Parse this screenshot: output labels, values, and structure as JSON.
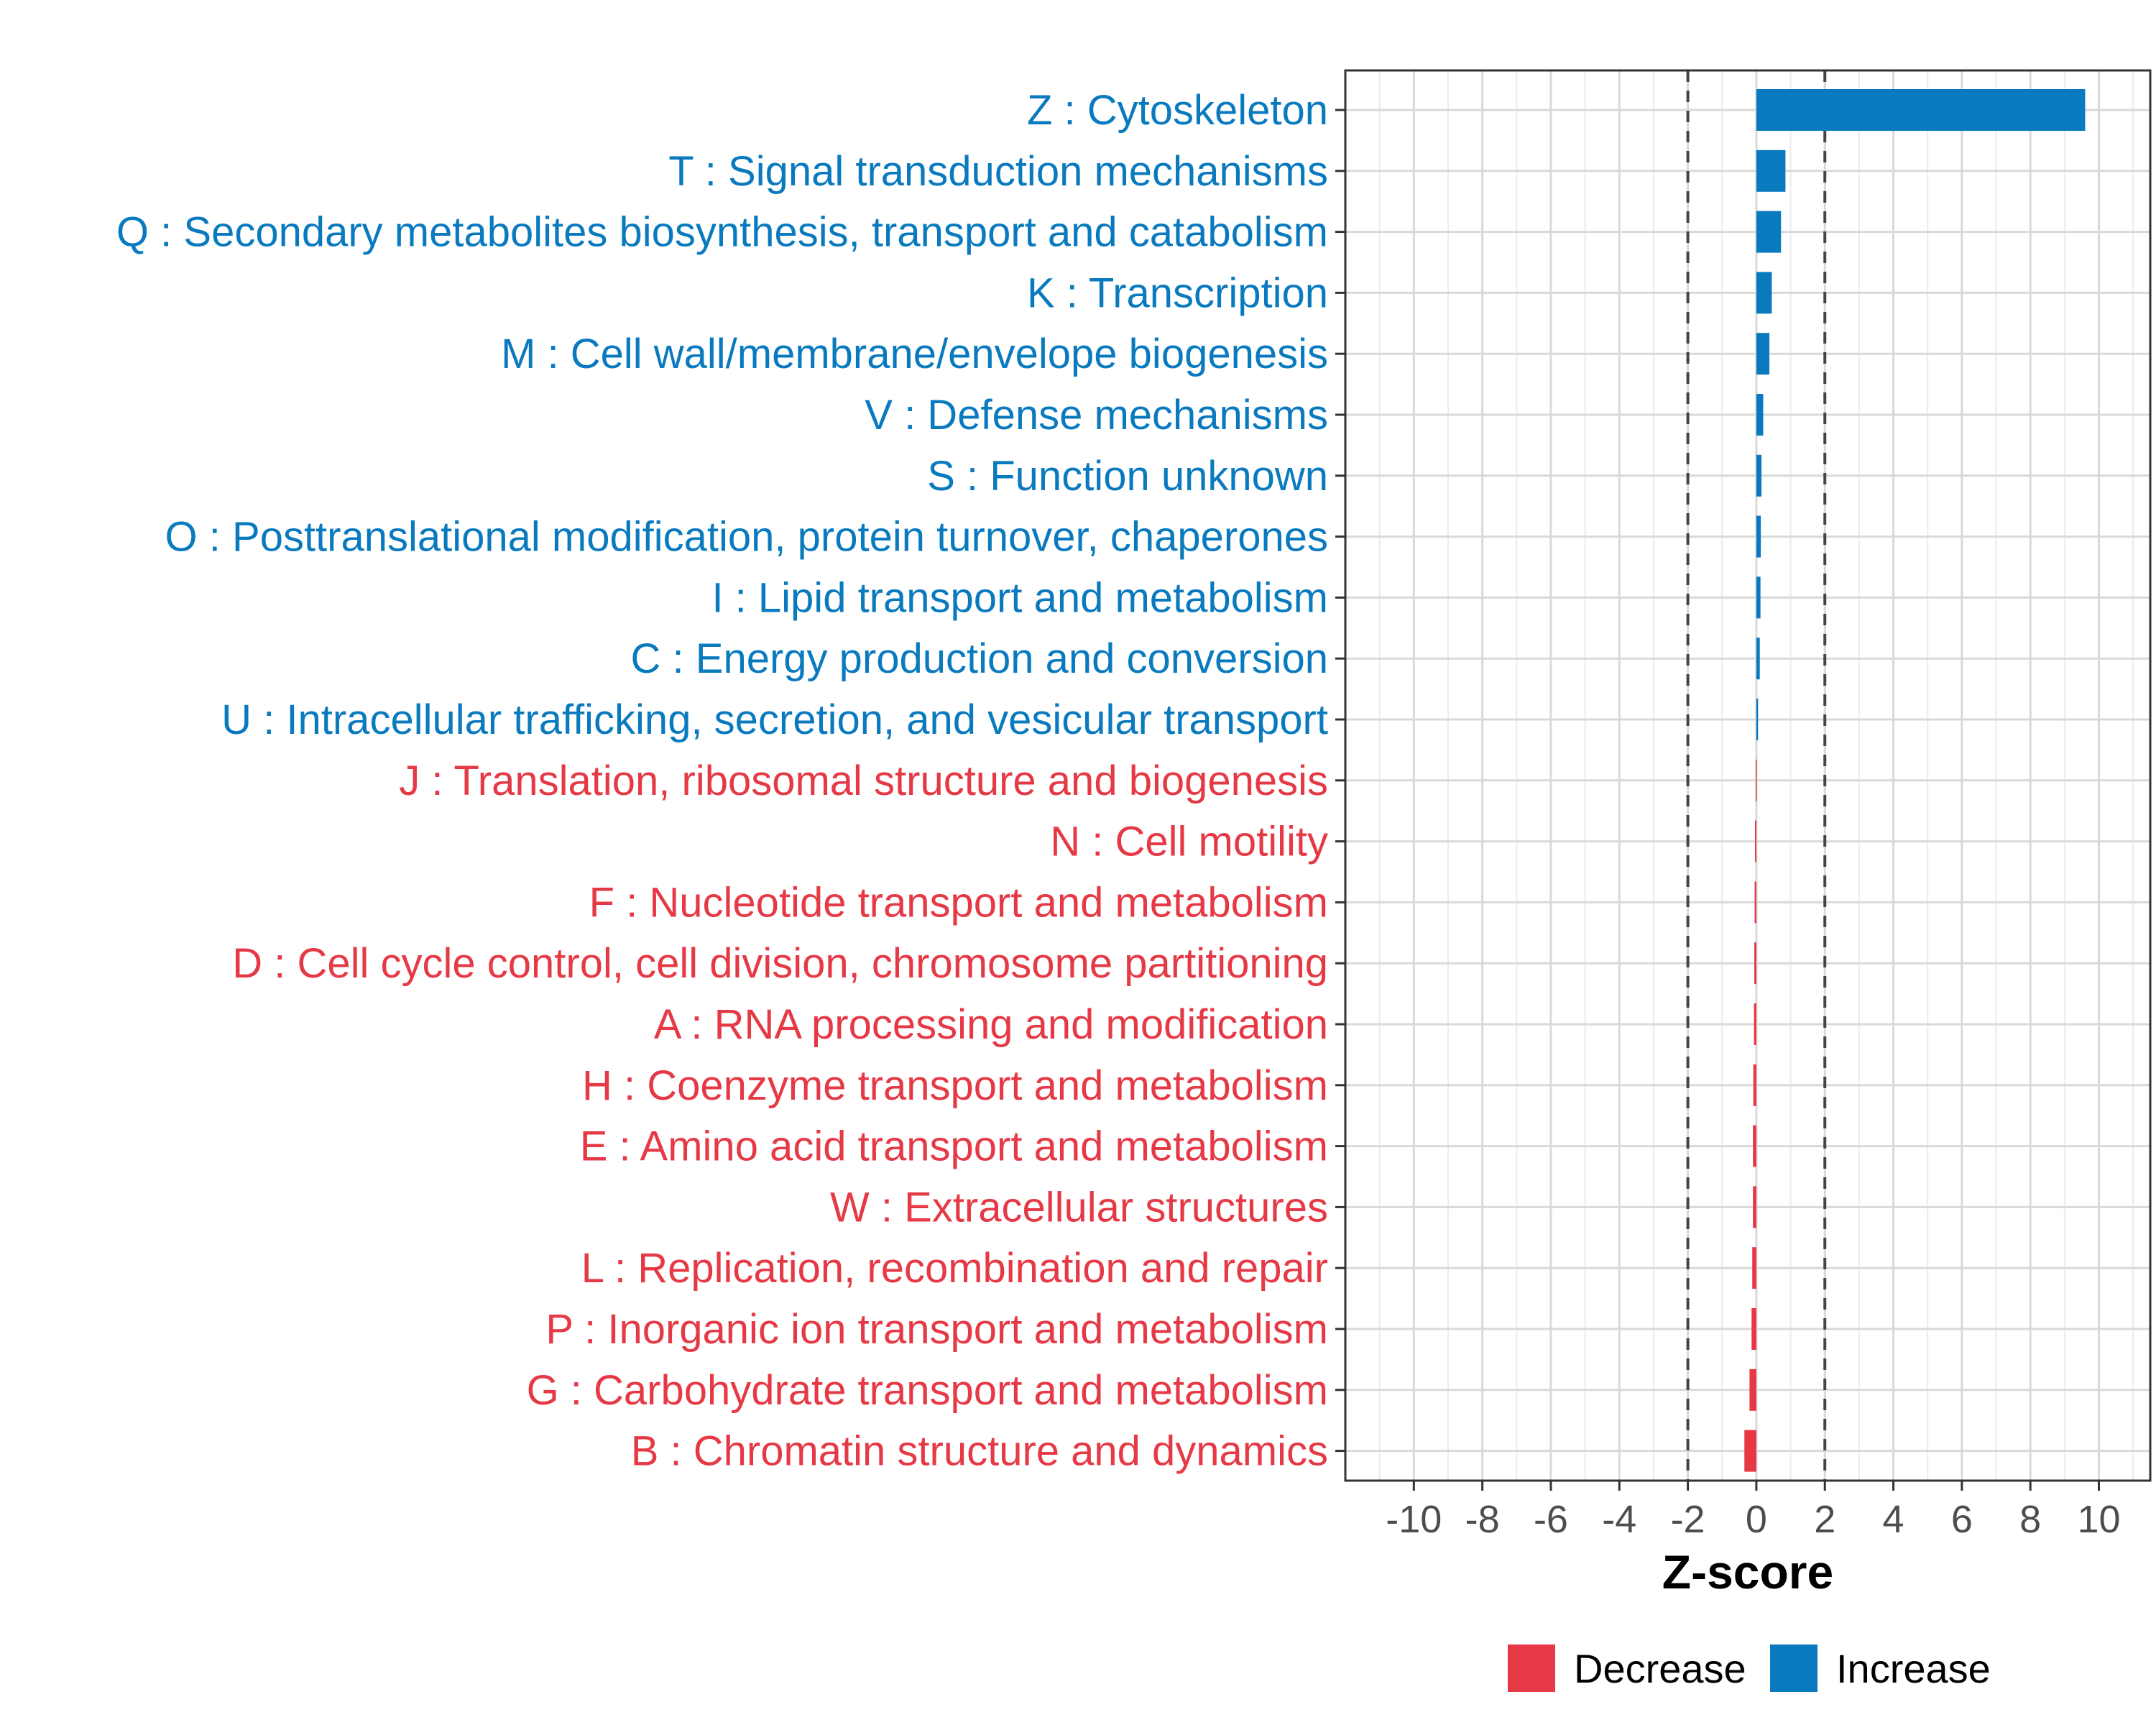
{
  "chart_data": {
    "type": "bar",
    "orientation": "horizontal",
    "xlabel": "Z-score",
    "xlim": [
      -12,
      11.5
    ],
    "xticks": [
      -10,
      -8,
      -6,
      -4,
      -2,
      0,
      2,
      4,
      6,
      8,
      10
    ],
    "reference_lines": [
      -2,
      2
    ],
    "grid": true,
    "legend_position": "bottom",
    "colors": {
      "Decrease": "#e63946",
      "Increase": "#0a7abf"
    },
    "legend": [
      "Decrease",
      "Increase"
    ],
    "categories": [
      {
        "label": "Z : Cytoskeleton",
        "value": 9.6,
        "direction": "Increase"
      },
      {
        "label": "T : Signal transduction mechanisms",
        "value": 0.85,
        "direction": "Increase"
      },
      {
        "label": "Q : Secondary metabolites biosynthesis, transport and catabolism",
        "value": 0.72,
        "direction": "Increase"
      },
      {
        "label": "K : Transcription",
        "value": 0.45,
        "direction": "Increase"
      },
      {
        "label": "M : Cell wall/membrane/envelope biogenesis",
        "value": 0.38,
        "direction": "Increase"
      },
      {
        "label": "V : Defense mechanisms",
        "value": 0.2,
        "direction": "Increase"
      },
      {
        "label": "S : Function unknown",
        "value": 0.15,
        "direction": "Increase"
      },
      {
        "label": "O : Posttranslational modification, protein turnover, chaperones",
        "value": 0.13,
        "direction": "Increase"
      },
      {
        "label": "I : Lipid transport and metabolism",
        "value": 0.12,
        "direction": "Increase"
      },
      {
        "label": "C : Energy production and conversion",
        "value": 0.1,
        "direction": "Increase"
      },
      {
        "label": "U : Intracellular trafficking, secretion, and vesicular transport",
        "value": 0.05,
        "direction": "Increase"
      },
      {
        "label": "J : Translation, ribosomal structure and biogenesis",
        "value": -0.02,
        "direction": "Decrease"
      },
      {
        "label": "N : Cell motility",
        "value": -0.04,
        "direction": "Decrease"
      },
      {
        "label": "F : Nucleotide transport and metabolism",
        "value": -0.05,
        "direction": "Decrease"
      },
      {
        "label": "D : Cell cycle control, cell division, chromosome partitioning",
        "value": -0.06,
        "direction": "Decrease"
      },
      {
        "label": "A : RNA processing and modification",
        "value": -0.07,
        "direction": "Decrease"
      },
      {
        "label": "H : Coenzyme transport and metabolism",
        "value": -0.09,
        "direction": "Decrease"
      },
      {
        "label": "E : Amino acid transport and metabolism",
        "value": -0.1,
        "direction": "Decrease"
      },
      {
        "label": "W : Extracellular structures",
        "value": -0.1,
        "direction": "Decrease"
      },
      {
        "label": "L : Replication, recombination and repair",
        "value": -0.12,
        "direction": "Decrease"
      },
      {
        "label": "P : Inorganic ion transport and metabolism",
        "value": -0.14,
        "direction": "Decrease"
      },
      {
        "label": "G : Carbohydrate transport and metabolism",
        "value": -0.2,
        "direction": "Decrease"
      },
      {
        "label": "B : Chromatin structure and dynamics",
        "value": -0.35,
        "direction": "Decrease"
      }
    ]
  }
}
